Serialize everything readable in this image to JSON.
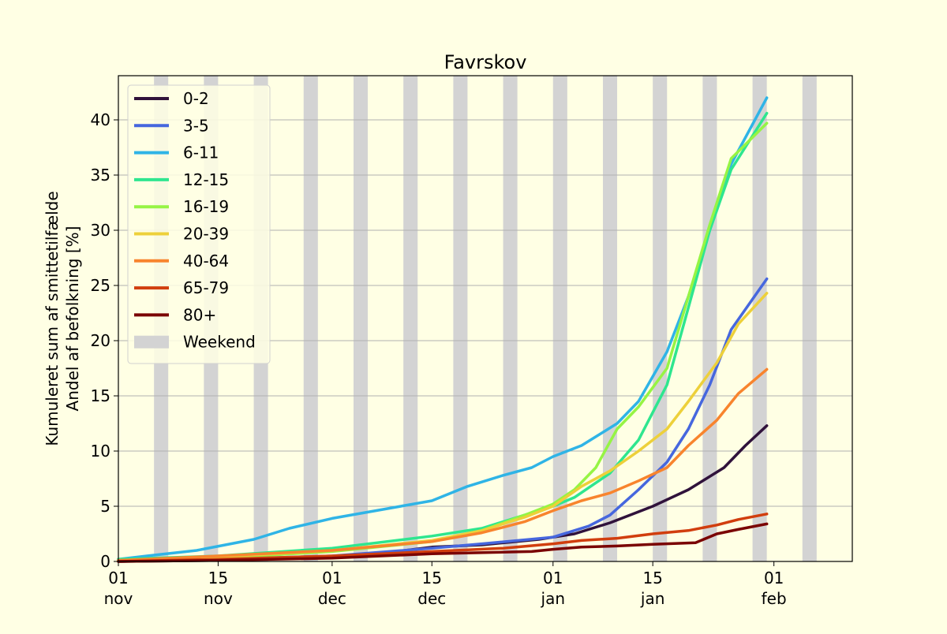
{
  "chart_data": {
    "type": "line",
    "title": "Favrskov",
    "ylabel_line1": "Kumuleret sum af smittetilfælde",
    "ylabel_line2": "Andel af befolkning [%]",
    "xlabel": "",
    "x_range": [
      "2021-11-01",
      "2022-02-12"
    ],
    "ylim": [
      0,
      44
    ],
    "x_ticks": [
      {
        "date": "2021-11-01",
        "day": "01",
        "month": "nov"
      },
      {
        "date": "2021-11-15",
        "day": "15",
        "month": "nov"
      },
      {
        "date": "2021-12-01",
        "day": "01",
        "month": "dec"
      },
      {
        "date": "2021-12-15",
        "day": "15",
        "month": "dec"
      },
      {
        "date": "2022-01-01",
        "day": "01",
        "month": "jan"
      },
      {
        "date": "2022-01-15",
        "day": "15",
        "month": "jan"
      },
      {
        "date": "2022-02-01",
        "day": "01",
        "month": "feb"
      }
    ],
    "y_ticks": [
      0,
      5,
      10,
      15,
      20,
      25,
      30,
      35,
      40
    ],
    "grid": "horizontal",
    "legend_position": "top-left",
    "weekend_label": "Weekend",
    "weekend_color": "#d3d3d3",
    "weekends": [
      [
        "2021-11-06",
        "2021-11-07"
      ],
      [
        "2021-11-13",
        "2021-11-14"
      ],
      [
        "2021-11-20",
        "2021-11-21"
      ],
      [
        "2021-11-27",
        "2021-11-28"
      ],
      [
        "2021-12-04",
        "2021-12-05"
      ],
      [
        "2021-12-11",
        "2021-12-12"
      ],
      [
        "2021-12-18",
        "2021-12-19"
      ],
      [
        "2021-12-25",
        "2021-12-26"
      ],
      [
        "2022-01-01",
        "2022-01-02"
      ],
      [
        "2022-01-08",
        "2022-01-09"
      ],
      [
        "2022-01-15",
        "2022-01-16"
      ],
      [
        "2022-01-22",
        "2022-01-23"
      ],
      [
        "2022-01-29",
        "2022-01-30"
      ],
      [
        "2022-02-05",
        "2022-02-06"
      ],
      [
        "2022-02-12",
        "2022-02-12"
      ]
    ],
    "series": [
      {
        "name": "0-2",
        "color": "#30123b",
        "points": [
          [
            "2021-11-01",
            0
          ],
          [
            "2021-11-15",
            0.1
          ],
          [
            "2021-12-01",
            0.4
          ],
          [
            "2021-12-10",
            0.9
          ],
          [
            "2021-12-15",
            1.3
          ],
          [
            "2021-12-22",
            1.5
          ],
          [
            "2021-12-30",
            2.0
          ],
          [
            "2022-01-04",
            2.5
          ],
          [
            "2022-01-09",
            3.5
          ],
          [
            "2022-01-15",
            5.0
          ],
          [
            "2022-01-20",
            6.5
          ],
          [
            "2022-01-25",
            8.5
          ],
          [
            "2022-01-28",
            10.5
          ],
          [
            "2022-01-31",
            12.3
          ]
        ]
      },
      {
        "name": "3-5",
        "color": "#4667de",
        "points": [
          [
            "2021-11-01",
            0
          ],
          [
            "2021-11-15",
            0.2
          ],
          [
            "2021-12-01",
            0.5
          ],
          [
            "2021-12-15",
            1.2
          ],
          [
            "2021-12-22",
            1.6
          ],
          [
            "2022-01-01",
            2.2
          ],
          [
            "2022-01-06",
            3.2
          ],
          [
            "2022-01-09",
            4.2
          ],
          [
            "2022-01-13",
            6.5
          ],
          [
            "2022-01-17",
            9.0
          ],
          [
            "2022-01-20",
            12.0
          ],
          [
            "2022-01-23",
            16.0
          ],
          [
            "2022-01-26",
            21.0
          ],
          [
            "2022-01-31",
            25.6
          ]
        ]
      },
      {
        "name": "6-11",
        "color": "#2fb4e6",
        "points": [
          [
            "2021-11-01",
            0.2
          ],
          [
            "2021-11-05",
            0.5
          ],
          [
            "2021-11-12",
            1.0
          ],
          [
            "2021-11-20",
            2.0
          ],
          [
            "2021-11-25",
            3.0
          ],
          [
            "2021-12-01",
            3.9
          ],
          [
            "2021-12-15",
            5.5
          ],
          [
            "2021-12-20",
            6.8
          ],
          [
            "2021-12-25",
            7.8
          ],
          [
            "2021-12-29",
            8.5
          ],
          [
            "2022-01-01",
            9.5
          ],
          [
            "2022-01-05",
            10.5
          ],
          [
            "2022-01-10",
            12.5
          ],
          [
            "2022-01-13",
            14.5
          ],
          [
            "2022-01-17",
            19.0
          ],
          [
            "2022-01-20",
            24.0
          ],
          [
            "2022-01-23",
            30.0
          ],
          [
            "2022-01-26",
            36.0
          ],
          [
            "2022-01-31",
            42.0
          ]
        ]
      },
      {
        "name": "12-15",
        "color": "#2ee68f",
        "points": [
          [
            "2021-11-01",
            0.2
          ],
          [
            "2021-11-15",
            0.5
          ],
          [
            "2021-12-01",
            1.2
          ],
          [
            "2021-12-15",
            2.3
          ],
          [
            "2021-12-22",
            3.0
          ],
          [
            "2021-12-28",
            4.2
          ],
          [
            "2022-01-01",
            5.0
          ],
          [
            "2022-01-04",
            5.8
          ],
          [
            "2022-01-09",
            8.0
          ],
          [
            "2022-01-13",
            11.0
          ],
          [
            "2022-01-17",
            16.0
          ],
          [
            "2022-01-20",
            23.0
          ],
          [
            "2022-01-23",
            30.0
          ],
          [
            "2022-01-26",
            35.5
          ],
          [
            "2022-01-31",
            40.6
          ]
        ]
      },
      {
        "name": "16-19",
        "color": "#96f444",
        "points": [
          [
            "2021-11-01",
            0.1
          ],
          [
            "2021-11-15",
            0.3
          ],
          [
            "2021-12-01",
            0.9
          ],
          [
            "2021-12-15",
            1.8
          ],
          [
            "2021-12-22",
            2.8
          ],
          [
            "2021-12-28",
            4.2
          ],
          [
            "2022-01-01",
            5.2
          ],
          [
            "2022-01-04",
            6.5
          ],
          [
            "2022-01-07",
            8.5
          ],
          [
            "2022-01-10",
            12.0
          ],
          [
            "2022-01-13",
            14.0
          ],
          [
            "2022-01-17",
            17.5
          ],
          [
            "2022-01-20",
            24.0
          ],
          [
            "2022-01-23",
            30.5
          ],
          [
            "2022-01-26",
            36.5
          ],
          [
            "2022-01-31",
            39.7
          ]
        ]
      },
      {
        "name": "20-39",
        "color": "#edd03a",
        "points": [
          [
            "2021-11-01",
            0.1
          ],
          [
            "2021-11-15",
            0.4
          ],
          [
            "2021-12-01",
            1.0
          ],
          [
            "2021-12-15",
            1.9
          ],
          [
            "2021-12-22",
            2.8
          ],
          [
            "2021-12-28",
            4.0
          ],
          [
            "2022-01-01",
            5.0
          ],
          [
            "2022-01-05",
            6.8
          ],
          [
            "2022-01-09",
            8.2
          ],
          [
            "2022-01-13",
            10.0
          ],
          [
            "2022-01-17",
            12.0
          ],
          [
            "2022-01-20",
            14.5
          ],
          [
            "2022-01-24",
            18.0
          ],
          [
            "2022-01-27",
            21.5
          ],
          [
            "2022-01-31",
            24.3
          ]
        ]
      },
      {
        "name": "40-64",
        "color": "#f8842d",
        "points": [
          [
            "2021-11-01",
            0.1
          ],
          [
            "2021-11-15",
            0.5
          ],
          [
            "2021-12-01",
            1.0
          ],
          [
            "2021-12-15",
            1.8
          ],
          [
            "2021-12-22",
            2.6
          ],
          [
            "2021-12-28",
            3.6
          ],
          [
            "2022-01-01",
            4.6
          ],
          [
            "2022-01-05",
            5.5
          ],
          [
            "2022-01-09",
            6.2
          ],
          [
            "2022-01-13",
            7.3
          ],
          [
            "2022-01-17",
            8.5
          ],
          [
            "2022-01-20",
            10.5
          ],
          [
            "2022-01-24",
            12.8
          ],
          [
            "2022-01-27",
            15.2
          ],
          [
            "2022-01-31",
            17.4
          ]
        ]
      },
      {
        "name": "65-79",
        "color": "#d13e0e",
        "points": [
          [
            "2021-11-01",
            0
          ],
          [
            "2021-11-15",
            0.2
          ],
          [
            "2021-12-01",
            0.5
          ],
          [
            "2021-12-15",
            0.9
          ],
          [
            "2021-12-25",
            1.2
          ],
          [
            "2022-01-01",
            1.6
          ],
          [
            "2022-01-05",
            1.9
          ],
          [
            "2022-01-10",
            2.1
          ],
          [
            "2022-01-15",
            2.5
          ],
          [
            "2022-01-20",
            2.8
          ],
          [
            "2022-01-24",
            3.3
          ],
          [
            "2022-01-27",
            3.8
          ],
          [
            "2022-01-31",
            4.3
          ]
        ]
      },
      {
        "name": "80+",
        "color": "#7a0403",
        "points": [
          [
            "2021-11-01",
            0
          ],
          [
            "2021-11-15",
            0.1
          ],
          [
            "2021-12-01",
            0.3
          ],
          [
            "2021-12-15",
            0.7
          ],
          [
            "2021-12-29",
            0.9
          ],
          [
            "2022-01-01",
            1.1
          ],
          [
            "2022-01-05",
            1.3
          ],
          [
            "2022-01-10",
            1.4
          ],
          [
            "2022-01-15",
            1.55
          ],
          [
            "2022-01-21",
            1.7
          ],
          [
            "2022-01-24",
            2.5
          ],
          [
            "2022-01-27",
            2.9
          ],
          [
            "2022-01-31",
            3.4
          ]
        ]
      }
    ]
  }
}
